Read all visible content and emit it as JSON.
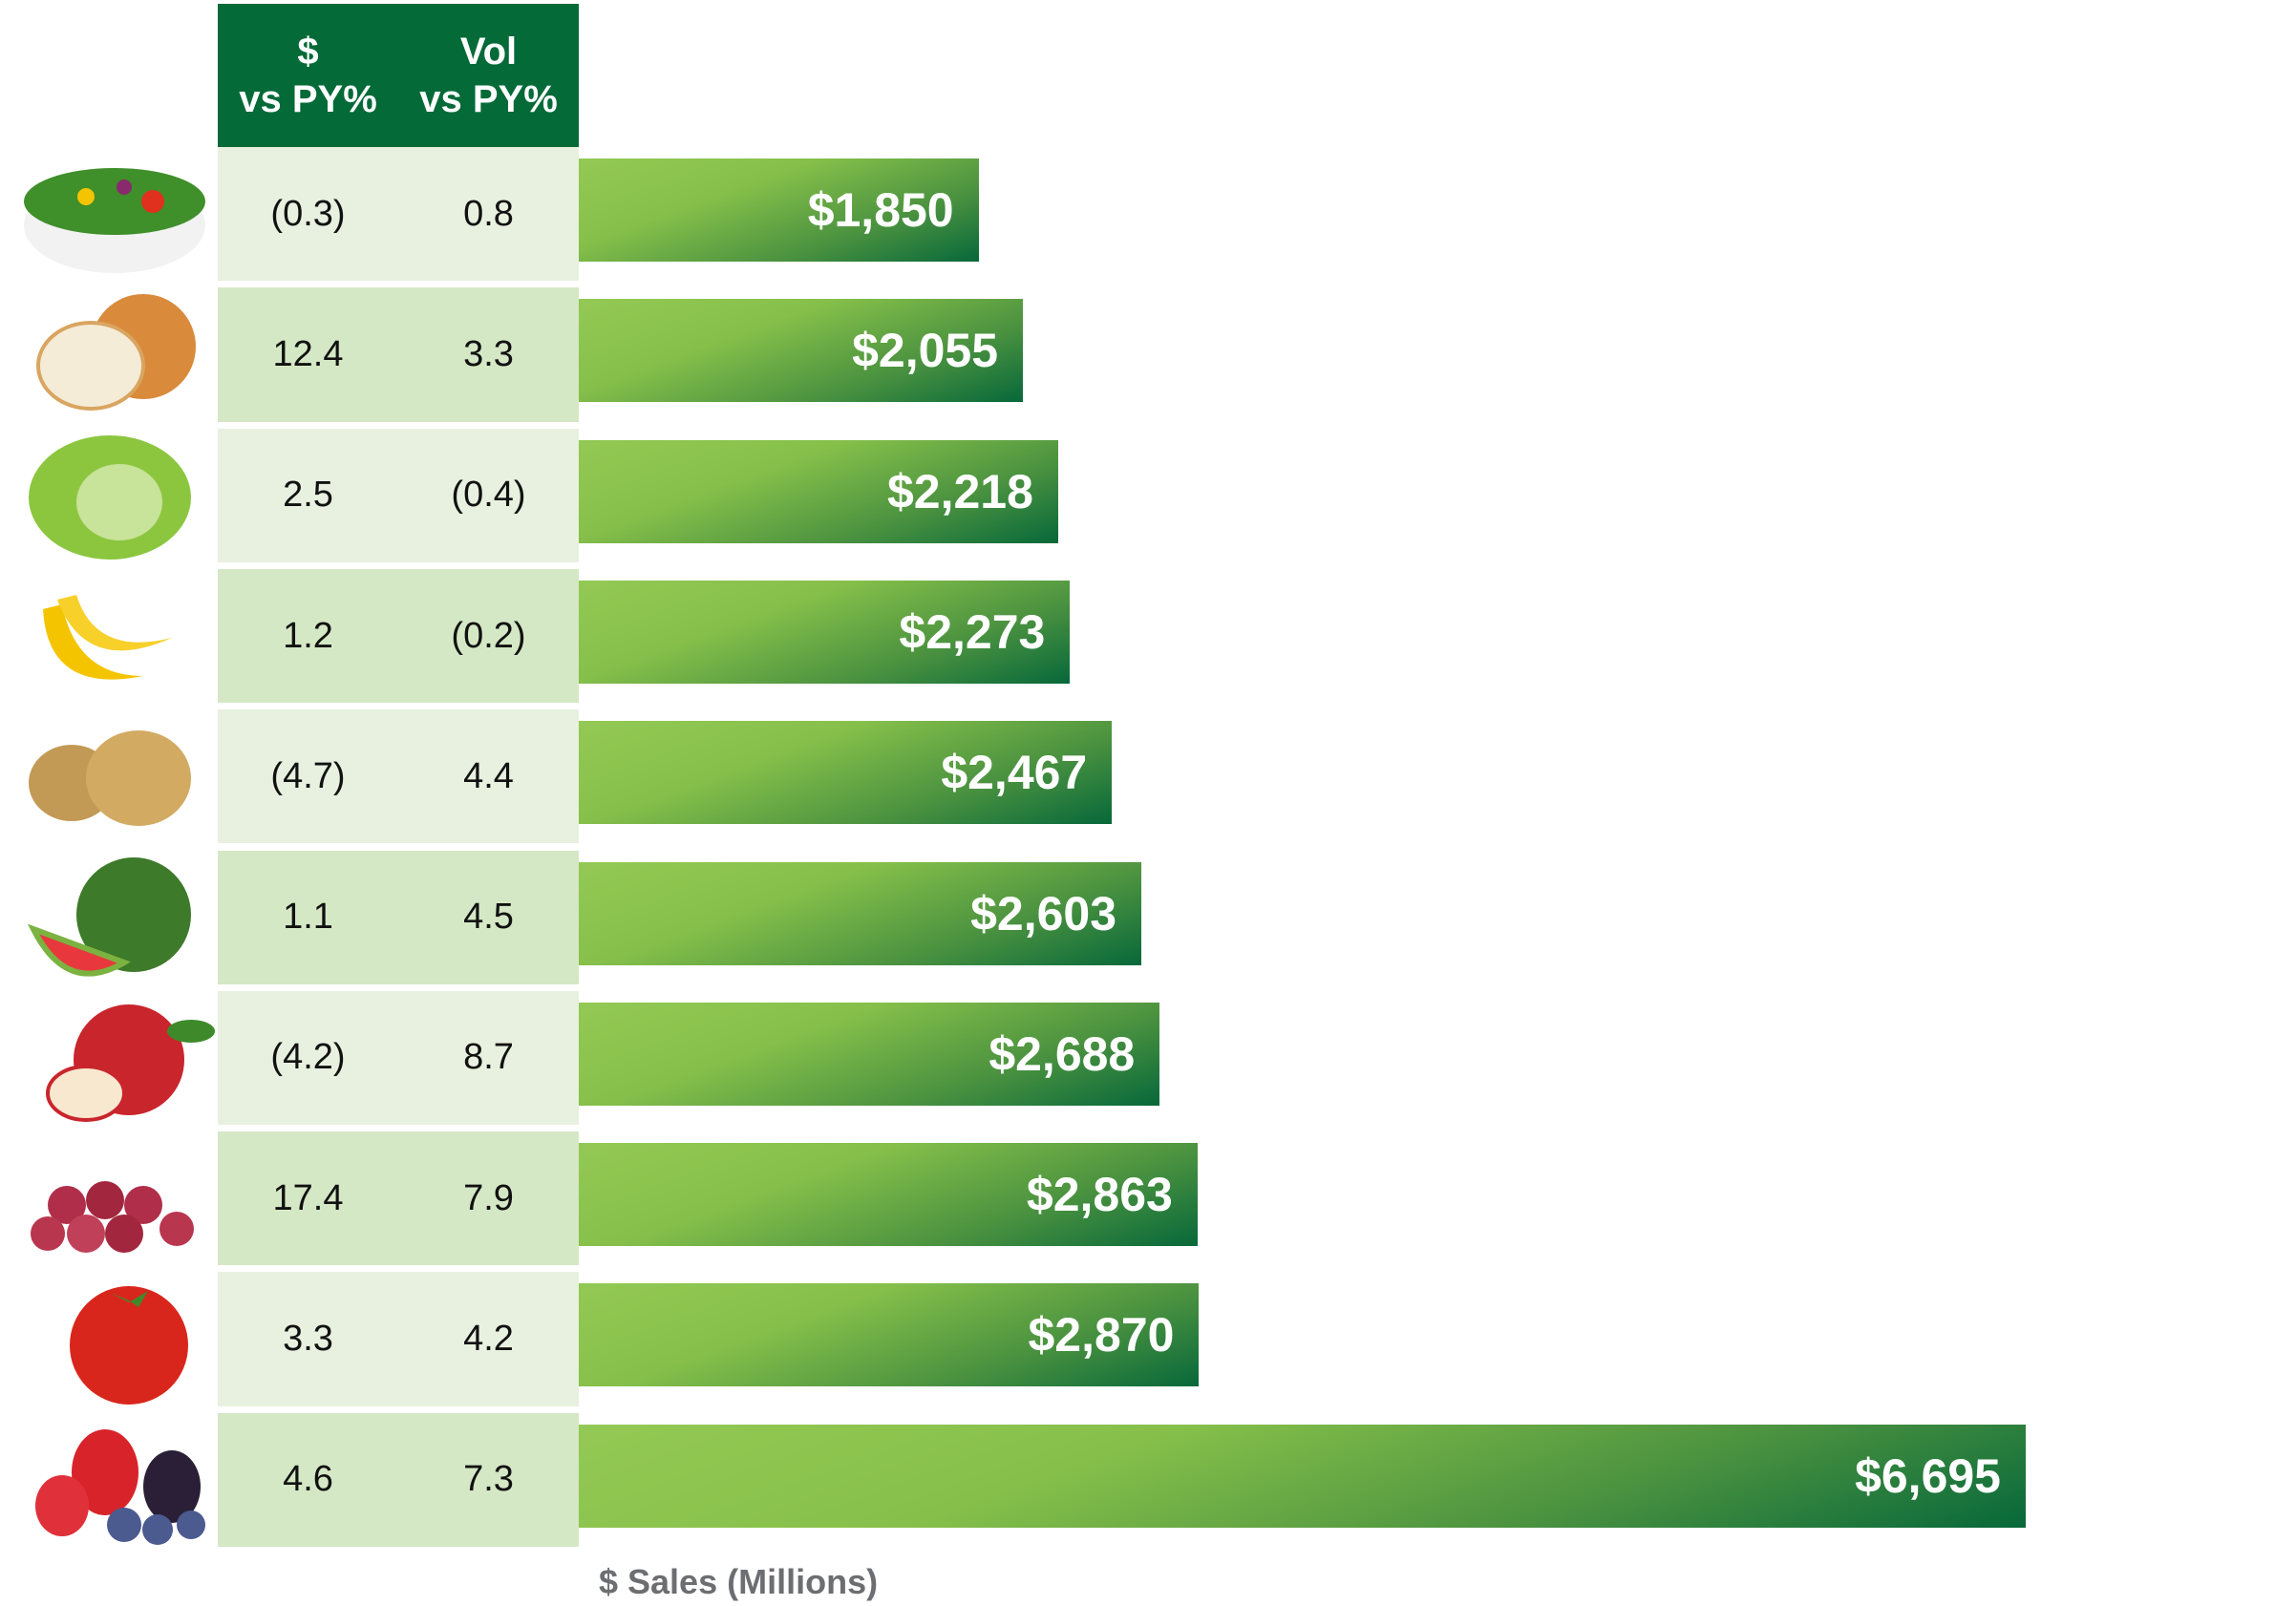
{
  "chart_data": {
    "type": "bar",
    "orientation": "horizontal",
    "xlabel": "$ Sales (Millions)",
    "table_headers": [
      [
        "$",
        "vs PY%"
      ],
      [
        "Vol",
        "vs PY%"
      ]
    ],
    "categories": [
      "salad",
      "onion",
      "lettuce",
      "banana",
      "potato",
      "watermelon",
      "apple",
      "grapes",
      "tomato",
      "berries"
    ],
    "values": [
      1850,
      2055,
      2218,
      2273,
      2467,
      2603,
      2688,
      2863,
      2870,
      6695
    ],
    "value_labels": [
      "$1,850",
      "$2,055",
      "$2,218",
      "$2,273",
      "$2,467",
      "$2,603",
      "$2,688",
      "$2,863",
      "$2,870",
      "$6,695"
    ],
    "dollar_vs_py": [
      "(0.3)",
      "12.4",
      "2.5",
      "1.2",
      "(4.7)",
      "1.1",
      "(4.2)",
      "17.4",
      "3.3",
      "4.6"
    ],
    "vol_vs_py": [
      "0.8",
      "3.3",
      "(0.4)",
      "(0.2)",
      "4.4",
      "4.5",
      "8.7",
      "7.9",
      "4.2",
      "7.3"
    ],
    "xlim": [
      0,
      6695
    ]
  },
  "colors": {
    "header": "#046a38",
    "row_light": "#e8f1df",
    "row_dark": "#d5e8c5",
    "bar_light": "#8cc44c",
    "bar_dark": "#07683a"
  }
}
